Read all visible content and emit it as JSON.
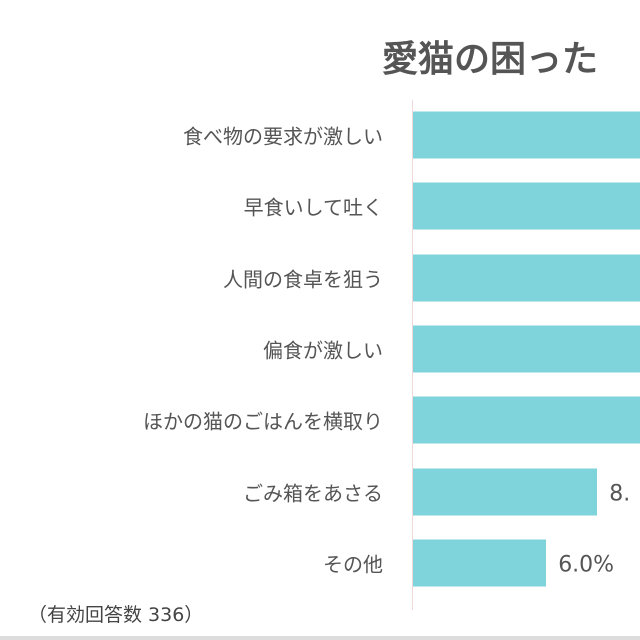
{
  "chart_data": {
    "type": "bar",
    "orientation": "horizontal",
    "title": "愛猫の困った",
    "categories": [
      "食べ物の要求が激しい",
      "早食いして吐く",
      "人間の食卓を狙う",
      "偏食が激しい",
      "ほかの猫のごはんを横取り",
      "ごみ箱をあさる",
      "その他"
    ],
    "values": [
      null,
      null,
      null,
      null,
      null,
      8.3,
      6.0
    ],
    "data_labels": [
      "",
      "",
      "",
      "",
      "",
      "8.",
      "6.0%"
    ],
    "unit": "%",
    "bar_color": "#7fd3da",
    "grid": false,
    "note": "（有効回答数 336）"
  }
}
